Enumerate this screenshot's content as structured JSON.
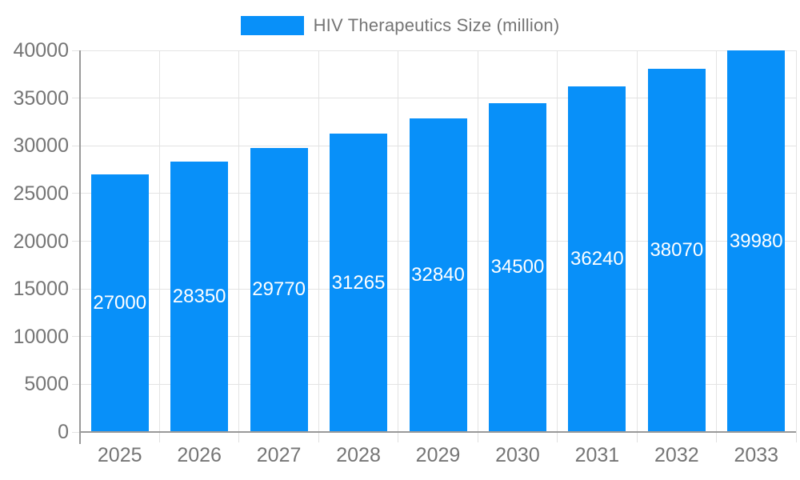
{
  "chart_data": {
    "type": "bar",
    "title": "",
    "legend": "HIV Therapeutics Size (million)",
    "legend_position": "top",
    "series_name": "HIV Therapeutics Size (million)",
    "categories": [
      "2025",
      "2026",
      "2027",
      "2028",
      "2029",
      "2030",
      "2031",
      "2032",
      "2033"
    ],
    "values": [
      27000,
      28350,
      29770,
      31265,
      32840,
      34500,
      36240,
      38070,
      39980
    ],
    "xlabel": "",
    "ylabel": "",
    "ylim": [
      0,
      40000
    ],
    "ytick_step": 5000,
    "ytick_labels": [
      "0",
      "5000",
      "10000",
      "15000",
      "20000",
      "25000",
      "30000",
      "35000",
      "40000"
    ],
    "grid": "both",
    "value_labels_shown": true,
    "colors": {
      "bar": "#0890F9",
      "value_label": "#FFFFFF",
      "axis_text": "#757575",
      "legend_text": "#757575",
      "gridline": "#E3E3E3",
      "axis_line": "#999999",
      "background": "#FFFFFF"
    }
  }
}
